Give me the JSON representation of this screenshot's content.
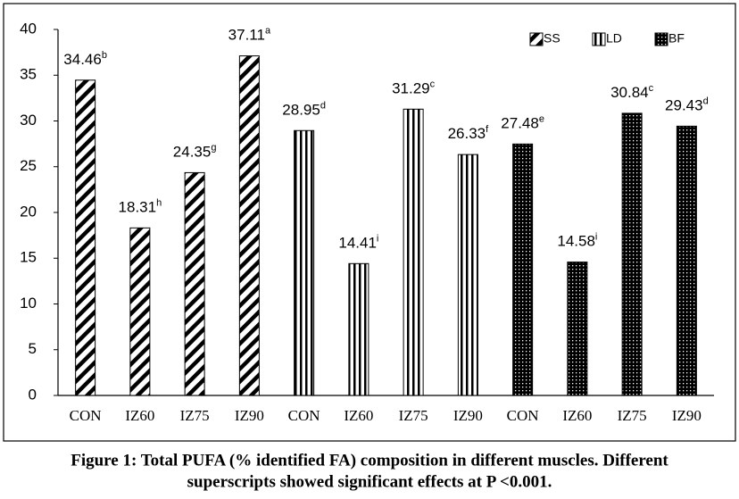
{
  "chart_data": {
    "type": "bar",
    "caption": [
      "Figure 1: Total PUFA (% identified FA) composition in different muscles. Different",
      "superscripts showed significant effects at P <0.001."
    ],
    "categories": [
      "CON",
      "IZ60",
      "IZ75",
      "IZ90",
      "CON",
      "IZ60",
      "IZ75",
      "IZ90",
      "CON",
      "IZ60",
      "IZ75",
      "IZ90"
    ],
    "series": [
      {
        "name": "SS",
        "pattern": "diagonal",
        "values": [
          34.46,
          18.31,
          24.35,
          37.11,
          null,
          null,
          null,
          null,
          null,
          null,
          null,
          null
        ],
        "value_labels": [
          "34.46",
          "18.31",
          "24.35",
          "37.11",
          null,
          null,
          null,
          null,
          null,
          null,
          null,
          null
        ],
        "superscripts": [
          "b",
          "h",
          "g",
          "a",
          null,
          null,
          null,
          null,
          null,
          null,
          null,
          null
        ]
      },
      {
        "name": "LD",
        "pattern": "vertical",
        "values": [
          null,
          null,
          null,
          null,
          28.95,
          14.41,
          31.29,
          26.33,
          null,
          null,
          null,
          null
        ],
        "value_labels": [
          null,
          null,
          null,
          null,
          "28.95",
          "14.41",
          "31.29",
          "26.33",
          null,
          null,
          null,
          null
        ],
        "superscripts": [
          null,
          null,
          null,
          null,
          "d",
          "i",
          "c",
          "f",
          null,
          null,
          null,
          null
        ]
      },
      {
        "name": "BF",
        "pattern": "dots",
        "values": [
          null,
          null,
          null,
          null,
          null,
          null,
          null,
          null,
          27.48,
          14.58,
          30.84,
          29.43
        ],
        "value_labels": [
          null,
          null,
          null,
          null,
          null,
          null,
          null,
          null,
          "27.48",
          "14.58",
          "30.84",
          "29.43"
        ],
        "superscripts": [
          null,
          null,
          null,
          null,
          null,
          null,
          null,
          null,
          "e",
          "i",
          "c",
          "d"
        ]
      }
    ],
    "ylim": [
      0,
      40
    ],
    "yticks": [
      0,
      5,
      10,
      15,
      20,
      25,
      30,
      35,
      40
    ],
    "grid": false,
    "legend": "top-right"
  }
}
